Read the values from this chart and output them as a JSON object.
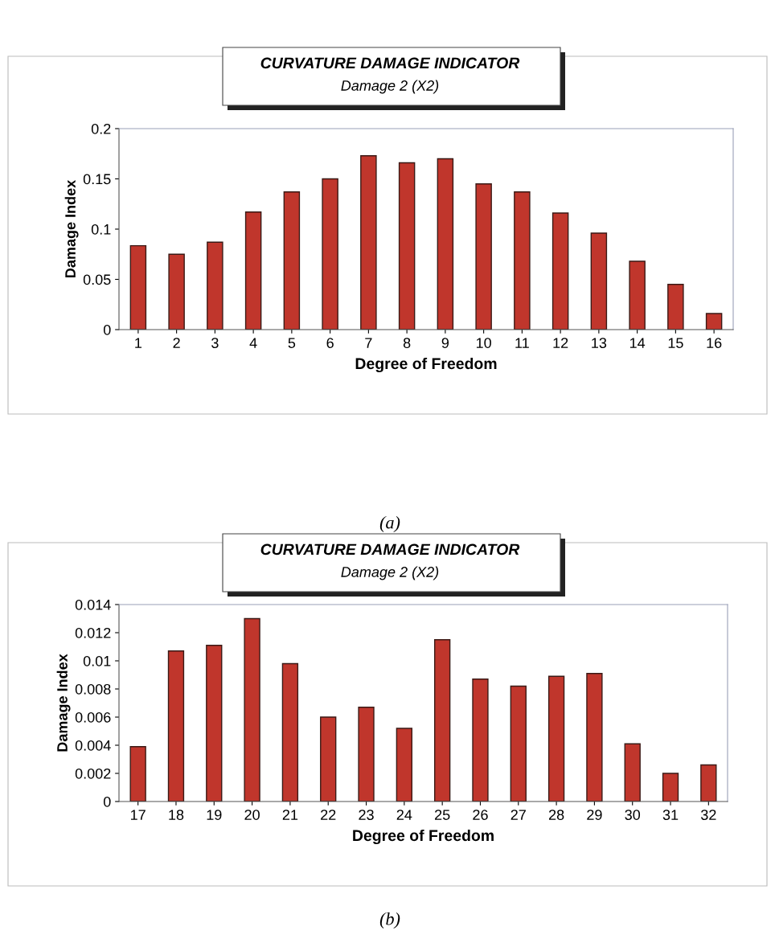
{
  "chart_data": [
    {
      "type": "bar",
      "title": "CURVATURE DAMAGE INDICATOR",
      "subtitle": "Damage 2 (X2)",
      "xlabel": "Degree of Freedom",
      "ylabel": "Damage Index",
      "categories": [
        "1",
        "2",
        "3",
        "4",
        "5",
        "6",
        "7",
        "8",
        "9",
        "10",
        "11",
        "12",
        "13",
        "14",
        "15",
        "16"
      ],
      "values": [
        0.0835,
        0.075,
        0.087,
        0.117,
        0.137,
        0.15,
        0.173,
        0.166,
        0.17,
        0.145,
        0.137,
        0.116,
        0.096,
        0.068,
        0.045,
        0.016
      ],
      "color": "#c0362c",
      "ylim": [
        0,
        0.2
      ],
      "yticks": [
        0,
        0.05,
        0.1,
        0.15,
        0.2
      ],
      "annotations": [
        "(a)"
      ]
    },
    {
      "type": "bar",
      "title": "CURVATURE DAMAGE INDICATOR",
      "subtitle": "Damage 2 (X2)",
      "xlabel": "Degree of Freedom",
      "ylabel": "Damage Index",
      "categories": [
        "17",
        "18",
        "19",
        "20",
        "21",
        "22",
        "23",
        "24",
        "25",
        "26",
        "27",
        "28",
        "29",
        "30",
        "31",
        "32"
      ],
      "values": [
        0.0039,
        0.0107,
        0.0111,
        0.013,
        0.0098,
        0.006,
        0.0067,
        0.0052,
        0.0115,
        0.0087,
        0.0082,
        0.0089,
        0.0091,
        0.0041,
        0.002,
        0.0026
      ],
      "color": "#c0362c",
      "ylim": [
        0,
        0.014
      ],
      "yticks": [
        0,
        0.002,
        0.004,
        0.006,
        0.008,
        0.01,
        0.012,
        0.014
      ],
      "annotations": [
        "(b)"
      ]
    }
  ]
}
